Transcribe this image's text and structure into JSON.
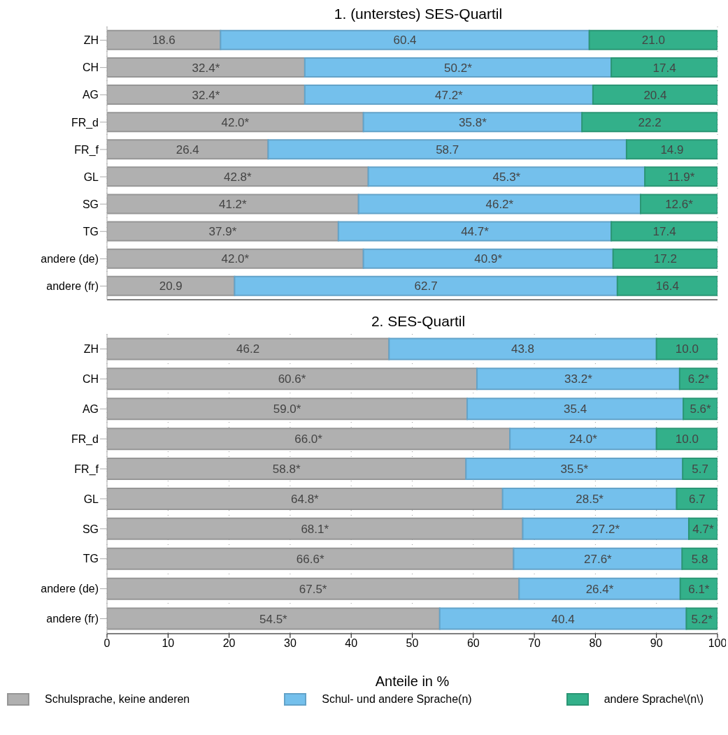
{
  "chart_data": [
    {
      "type": "bar",
      "title": "1. (unterstes) SES-Quartil",
      "orientation": "horizontal",
      "stacked": true,
      "categories": [
        "ZH",
        "CH",
        "AG",
        "FR_d",
        "FR_f",
        "GL",
        "SG",
        "TG",
        "andere (de)",
        "andere (fr)"
      ],
      "series": [
        {
          "color": "#b0b0b0",
          "values": [
            18.6,
            32.4,
            32.4,
            42.0,
            26.4,
            42.8,
            41.2,
            37.9,
            42.0,
            20.9
          ],
          "value_labels": [
            "18.6",
            "32.4*",
            "32.4*",
            "42.0*",
            "26.4",
            "42.8*",
            "41.2*",
            "37.9*",
            "42.0*",
            "20.9"
          ]
        },
        {
          "color": "#74c0ec",
          "values": [
            60.4,
            50.2,
            47.2,
            35.8,
            58.7,
            45.3,
            46.2,
            44.7,
            40.9,
            62.7
          ],
          "value_labels": [
            "60.4",
            "50.2*",
            "47.2*",
            "35.8*",
            "58.7",
            "45.3*",
            "46.2*",
            "44.7*",
            "40.9*",
            "62.7"
          ]
        },
        {
          "color": "#33b08a",
          "values": [
            21.0,
            17.4,
            20.4,
            22.2,
            14.9,
            11.9,
            12.6,
            17.4,
            17.2,
            16.4
          ],
          "value_labels": [
            "21.0",
            "17.4",
            "20.4",
            "22.2",
            "14.9",
            "11.9*",
            "12.6*",
            "17.4",
            "17.2",
            "16.4"
          ]
        }
      ],
      "xlim": [
        0,
        100
      ],
      "xticks": [
        0,
        10,
        20,
        30,
        40,
        50,
        60,
        70,
        80,
        90,
        100
      ],
      "tick_labels": "y",
      "grid": "x"
    },
    {
      "type": "bar",
      "title": "2. SES-Quartil",
      "orientation": "horizontal",
      "stacked": true,
      "xlabel": "Anteile in %",
      "categories": [
        "ZH",
        "CH",
        "AG",
        "FR_d",
        "FR_f",
        "GL",
        "SG",
        "TG",
        "andere (de)",
        "andere (fr)"
      ],
      "series": [
        {
          "name": "Schulsprache, keine anderen",
          "color": "#b0b0b0",
          "values": [
            46.2,
            60.6,
            59.0,
            66.0,
            58.8,
            64.8,
            68.1,
            66.6,
            67.5,
            54.5
          ],
          "value_labels": [
            "46.2",
            "60.6*",
            "59.0*",
            "66.0*",
            "58.8*",
            "64.8*",
            "68.1*",
            "66.6*",
            "67.5*",
            "54.5*"
          ]
        },
        {
          "name": "Schul- und andere Sprache(n)",
          "color": "#74c0ec",
          "values": [
            43.8,
            33.2,
            35.4,
            24.0,
            35.5,
            28.5,
            27.2,
            27.6,
            26.4,
            40.4
          ],
          "value_labels": [
            "43.8",
            "33.2*",
            "35.4",
            "24.0*",
            "35.5*",
            "28.5*",
            "27.2*",
            "27.6*",
            "26.4*",
            "40.4"
          ]
        },
        {
          "name": "andere Sprache\\(n\\)",
          "color": "#33b08a",
          "values": [
            10.0,
            6.2,
            5.6,
            10.0,
            5.7,
            6.7,
            4.7,
            5.8,
            6.1,
            5.2
          ],
          "value_labels": [
            "10.0",
            "6.2*",
            "5.6*",
            "10.0",
            "5.7",
            "6.7",
            "4.7*",
            "5.8",
            "6.1*",
            "5.2*"
          ]
        }
      ],
      "xlim": [
        0,
        100
      ],
      "xticks": [
        0,
        10,
        20,
        30,
        40,
        50,
        60,
        70,
        80,
        90,
        100
      ],
      "grid": "x",
      "legend": "bottom"
    }
  ]
}
